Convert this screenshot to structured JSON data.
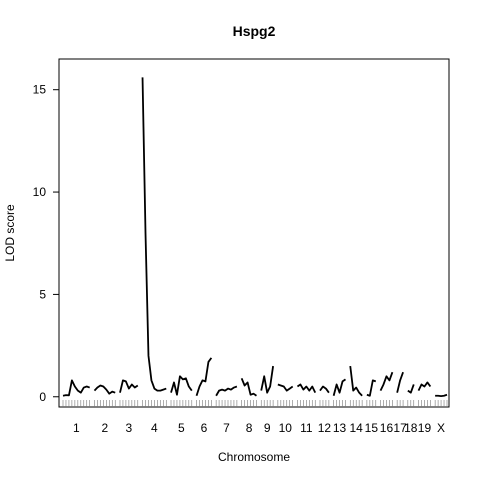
{
  "chart_data": {
    "type": "line",
    "title": "Hspg2",
    "xlabel": "Chromosome",
    "ylabel": "LOD score",
    "ylim": [
      -0.5,
      16.5
    ],
    "yticks": [
      0,
      5,
      10,
      15
    ],
    "grid": false,
    "legend": "none",
    "line_color": "#000000",
    "chromosomes": [
      {
        "label": "1",
        "lods": [
          0.05,
          0.08,
          0.07,
          0.8,
          0.5,
          0.3,
          0.2,
          0.45,
          0.5,
          0.45
        ]
      },
      {
        "label": "2",
        "lods": [
          0.3,
          0.45,
          0.55,
          0.5,
          0.35,
          0.15,
          0.25,
          0.2
        ]
      },
      {
        "label": "3",
        "lods": [
          0.2,
          0.8,
          0.75,
          0.4,
          0.6,
          0.45,
          0.55
        ]
      },
      {
        "label": "4",
        "lods": [
          15.6,
          8.0,
          2.0,
          0.8,
          0.4,
          0.3,
          0.3,
          0.35,
          0.4
        ]
      },
      {
        "label": "5",
        "lods": [
          0.2,
          0.7,
          0.1,
          1.0,
          0.85,
          0.9,
          0.5,
          0.3
        ]
      },
      {
        "label": "6",
        "lods": [
          0.05,
          0.5,
          0.8,
          0.75,
          1.7,
          1.9
        ]
      },
      {
        "label": "7",
        "lods": [
          0.05,
          0.3,
          0.35,
          0.3,
          0.4,
          0.35,
          0.45,
          0.5
        ]
      },
      {
        "label": "8",
        "lods": [
          0.9,
          0.55,
          0.7,
          0.1,
          0.15,
          0.05
        ]
      },
      {
        "label": "9",
        "lods": [
          0.3,
          1.0,
          0.2,
          0.5,
          1.5
        ]
      },
      {
        "label": "10",
        "lods": [
          0.6,
          0.55,
          0.5,
          0.3,
          0.4,
          0.5
        ]
      },
      {
        "label": "11",
        "lods": [
          0.5,
          0.6,
          0.35,
          0.5,
          0.3,
          0.5,
          0.2
        ]
      },
      {
        "label": "12",
        "lods": [
          0.3,
          0.5,
          0.4,
          0.2
        ]
      },
      {
        "label": "13",
        "lods": [
          0.05,
          0.6,
          0.2,
          0.75,
          0.85
        ]
      },
      {
        "label": "14",
        "lods": [
          1.5,
          0.3,
          0.45,
          0.2,
          0.05
        ]
      },
      {
        "label": "15",
        "lods": [
          0.1,
          0.05,
          0.8,
          0.75
        ]
      },
      {
        "label": "16",
        "lods": [
          0.3,
          0.6,
          1.0,
          0.8,
          1.2
        ]
      },
      {
        "label": "17",
        "lods": [
          0.2,
          0.8,
          1.2
        ]
      },
      {
        "label": "18",
        "lods": [
          0.3,
          0.2,
          0.6
        ]
      },
      {
        "label": "19",
        "lods": [
          0.3,
          0.6,
          0.5,
          0.7,
          0.5
        ]
      },
      {
        "label": "X",
        "lods": [
          0.05,
          0.05,
          0.03,
          0.05,
          0.1
        ]
      }
    ]
  }
}
